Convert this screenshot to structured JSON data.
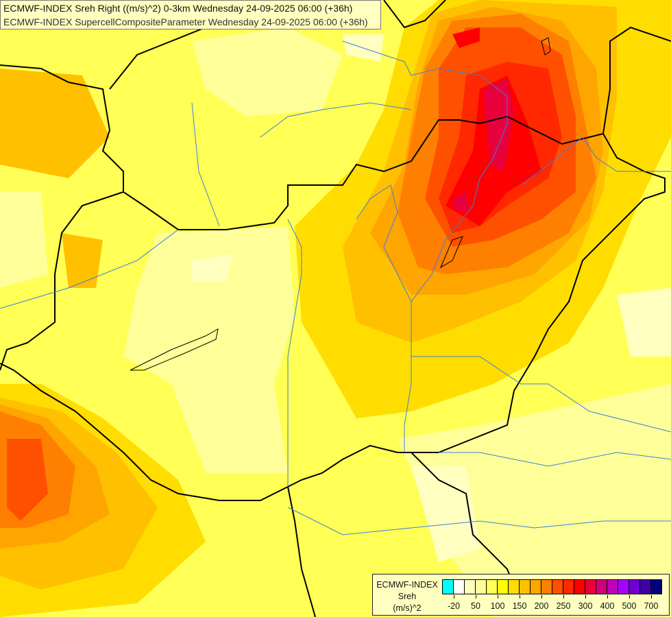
{
  "header": {
    "line1": "ECMWF-INDEX Sreh Right ((m/s)^2) 0-3km Wednesday 24-09-2025 06:00 (+36h)",
    "line2": "ECMWF-INDEX SupercellCompositeParameter Wednesday 24-09-2025 06:00 (+36h)"
  },
  "legend": {
    "source": "ECMWF-INDEX",
    "variable": "Sreh",
    "unit": "(m/s)^2",
    "colors": [
      "#00ffff",
      "#ffffff",
      "#ffffc0",
      "#ffff99",
      "#ffff55",
      "#ffff00",
      "#ffdd00",
      "#ffc000",
      "#ffa500",
      "#ff8000",
      "#ff5000",
      "#ff2800",
      "#ff0000",
      "#e8003c",
      "#d0007a",
      "#c000b8",
      "#a800ff",
      "#7000d0",
      "#4000a8",
      "#000080"
    ],
    "ticks": [
      {
        "label": "-20",
        "after": 1
      },
      {
        "label": "50",
        "after": 3
      },
      {
        "label": "100",
        "after": 5
      },
      {
        "label": "150",
        "after": 7
      },
      {
        "label": "200",
        "after": 9
      },
      {
        "label": "250",
        "after": 11
      },
      {
        "label": "300",
        "after": 13
      },
      {
        "label": "400",
        "after": 15
      },
      {
        "label": "500",
        "after": 17
      },
      {
        "label": "700",
        "after": 19
      }
    ]
  },
  "map": {
    "border_color": "#000000",
    "river_color": "#3c7ee0"
  }
}
